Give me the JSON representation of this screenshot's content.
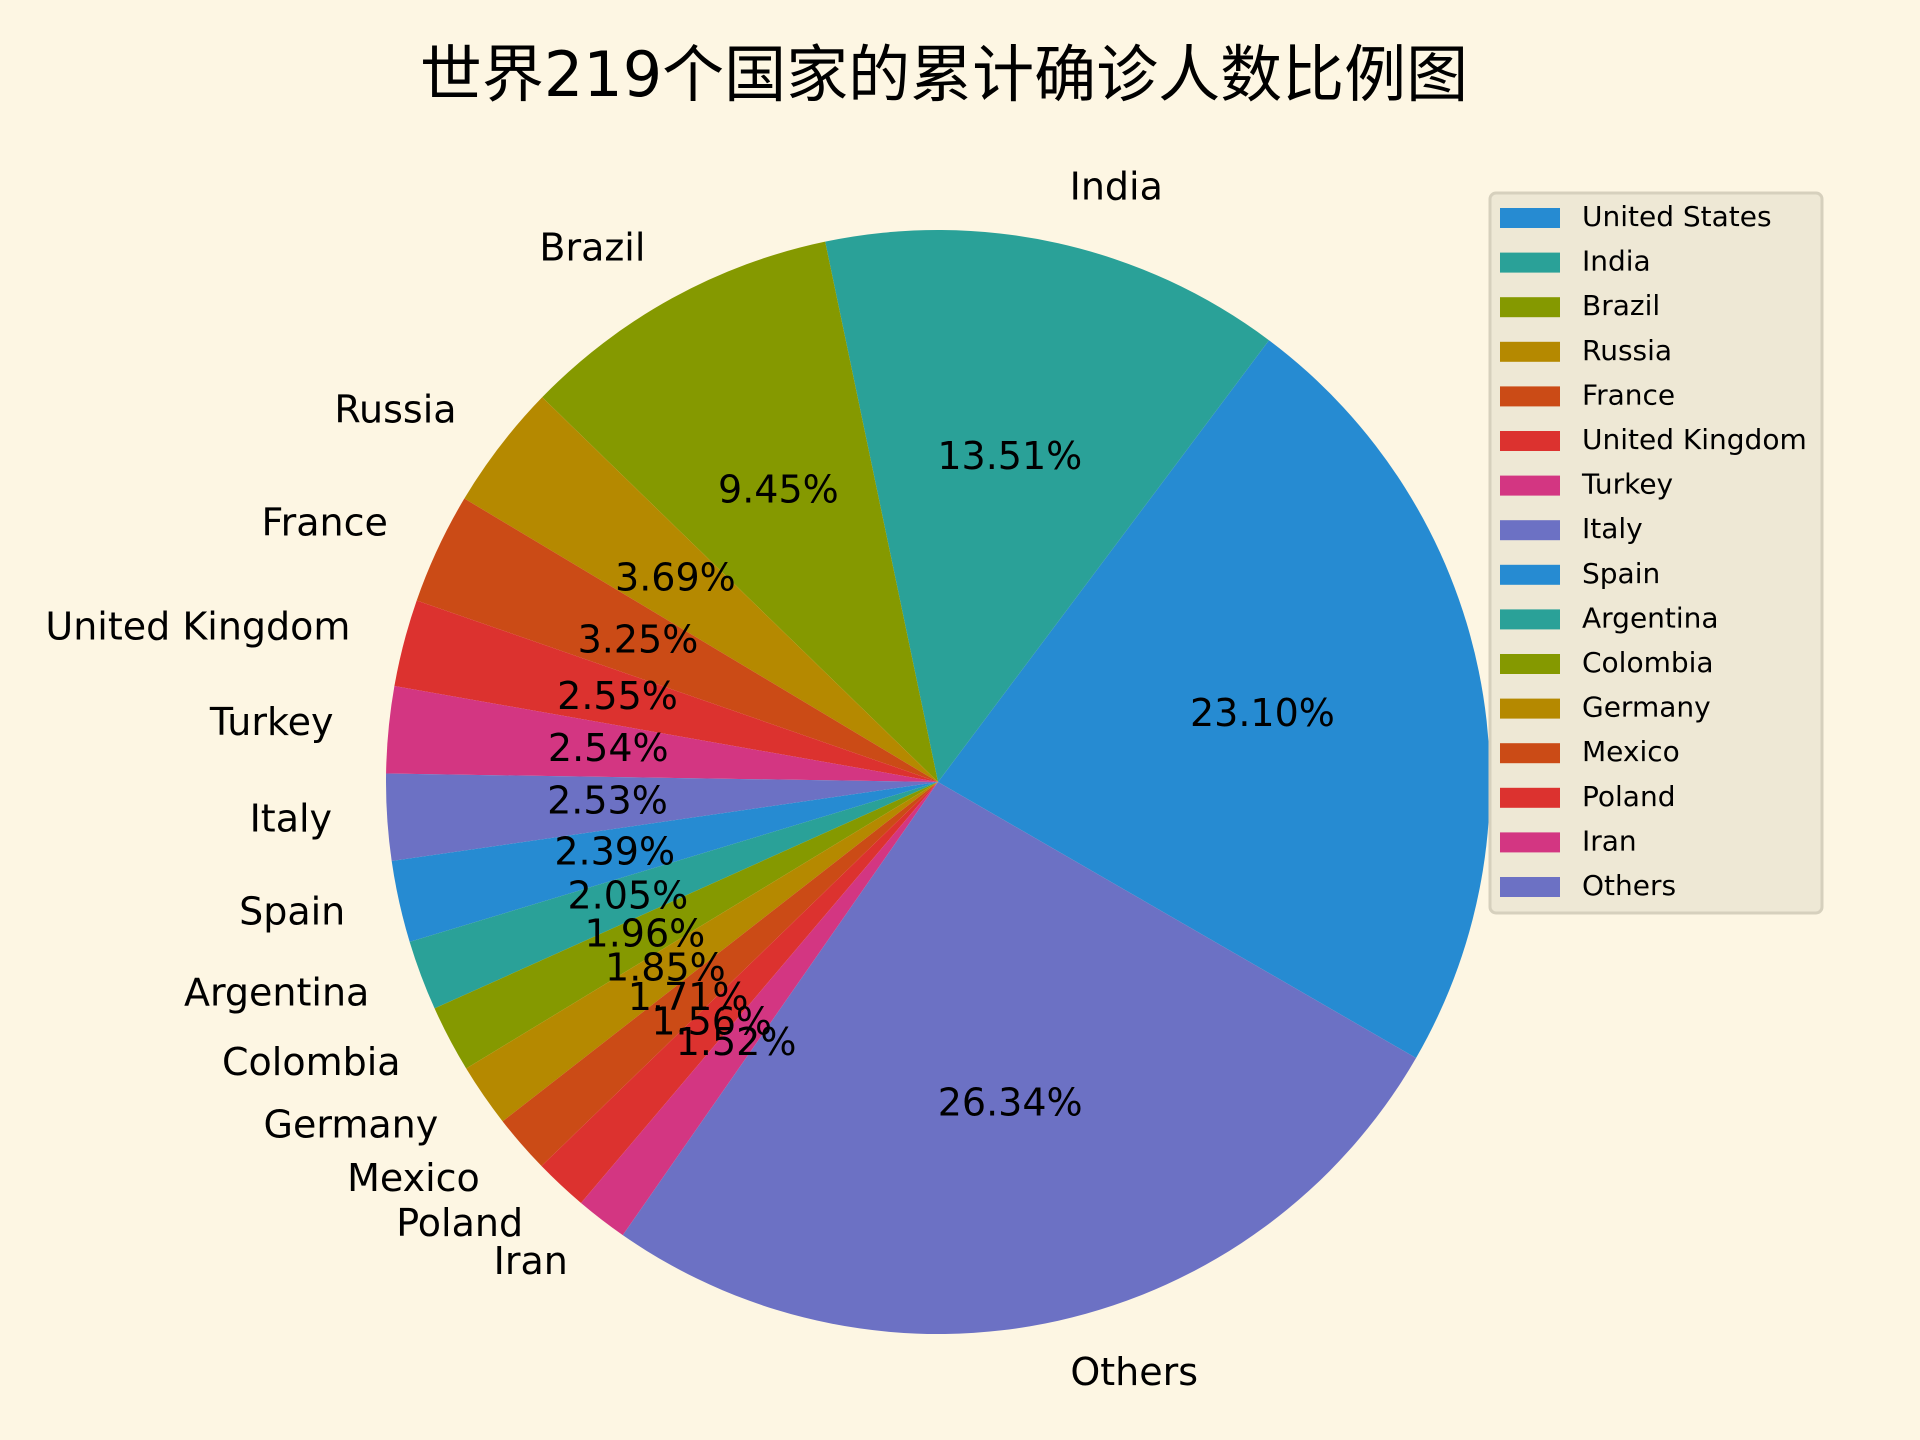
{
  "chart_data": {
    "type": "pie",
    "title": "世界219个国家的累计确诊人数比例图",
    "categories": [
      "United States",
      "India",
      "Brazil",
      "Russia",
      "France",
      "United Kingdom",
      "Turkey",
      "Italy",
      "Spain",
      "Argentina",
      "Colombia",
      "Germany",
      "Mexico",
      "Poland",
      "Iran",
      "Others"
    ],
    "values": [
      23.1,
      13.51,
      9.45,
      3.69,
      3.25,
      2.55,
      2.54,
      2.53,
      2.39,
      2.05,
      1.96,
      1.85,
      1.71,
      1.56,
      1.52,
      26.34
    ],
    "percent_labels": [
      "23.10%",
      "13.51%",
      "9.45%",
      "3.69%",
      "3.25%",
      "2.55%",
      "2.54%",
      "2.53%",
      "2.39%",
      "2.05%",
      "1.96%",
      "1.85%",
      "1.71%",
      "1.56%",
      "1.52%",
      "26.34%"
    ],
    "colors": [
      "#268bd2",
      "#2aa198",
      "#859900",
      "#b58900",
      "#cb4b16",
      "#dc322f",
      "#d33682",
      "#6c71c4",
      "#268bd2",
      "#2aa198",
      "#859900",
      "#b58900",
      "#cb4b16",
      "#dc322f",
      "#d33682",
      "#6c71c4"
    ],
    "start_angle_deg": -30,
    "direction": "counterclockwise",
    "legend_position": "upper-right",
    "background": "#fdf6e3"
  }
}
